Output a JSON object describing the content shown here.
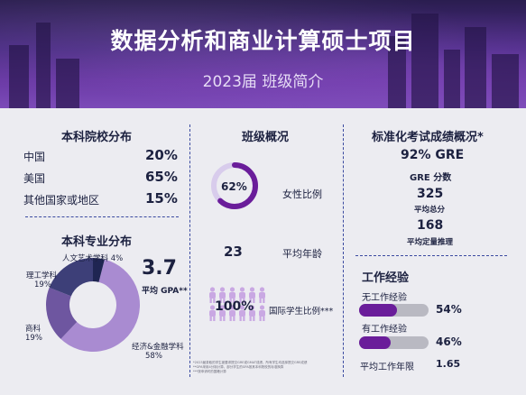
{
  "header": {
    "title": "数据分析和商业计算硕士项目",
    "subtitle": "2023届 班级简介"
  },
  "school_dist": {
    "title": "本科院校分布",
    "rows": [
      {
        "label": "中国",
        "value": "20%"
      },
      {
        "label": "美国",
        "value": "65%"
      },
      {
        "label": "其他国家或地区",
        "value": "15%"
      }
    ]
  },
  "major_dist": {
    "title": "本科专业分布",
    "gpa_value": "3.7",
    "gpa_label": "平均 GPA**",
    "labels": {
      "arts": "人文艺术学科 4%",
      "science": "理工学科",
      "science_pct": "19%",
      "business": "商科",
      "business_pct": "19%",
      "econ": "经济&金融学科",
      "econ_pct": "58%"
    },
    "colors": {
      "econ": "#a98bd1",
      "business": "#6e56a0",
      "science": "#3d3f78",
      "arts": "#1f2552"
    }
  },
  "chart_data": {
    "type": "pie",
    "categories": [
      "经济&金融学科",
      "商科",
      "理工学科",
      "人文艺术学科"
    ],
    "values": [
      58,
      19,
      19,
      4
    ]
  },
  "class_overview": {
    "title": "班级概况",
    "female_pct": "62%",
    "female_fraction": 0.62,
    "female_label": "女性比例",
    "avg_age": "23",
    "avg_age_label": "平均年龄",
    "intl_pct": "100%",
    "intl_label": "国际学生比例***"
  },
  "test_scores": {
    "title": "标准化考试成绩概况*",
    "gre_line": "92% GRE",
    "gre_sub": "GRE 分数",
    "total": "325",
    "total_label": "平均总分",
    "quant": "168",
    "quant_label": "平均定量推理"
  },
  "work_exp": {
    "title": "工作经验",
    "none_label": "无工作经验",
    "none_pct": "54%",
    "none_fraction": 0.54,
    "with_label": "有工作经验",
    "with_pct": "46%",
    "with_fraction": 0.46,
    "avg_years_label": "平均工作年限",
    "avg_years": "1.65"
  },
  "footnotes": [
    "*2023届录取的学生被要求提交GRE或GMAT成绩，所有学生均选择提交GRE成绩",
    "**GPA采用4分制计算，部分学生的GPA按其本科院校的标准换算",
    "***按申请时的国籍计算"
  ]
}
